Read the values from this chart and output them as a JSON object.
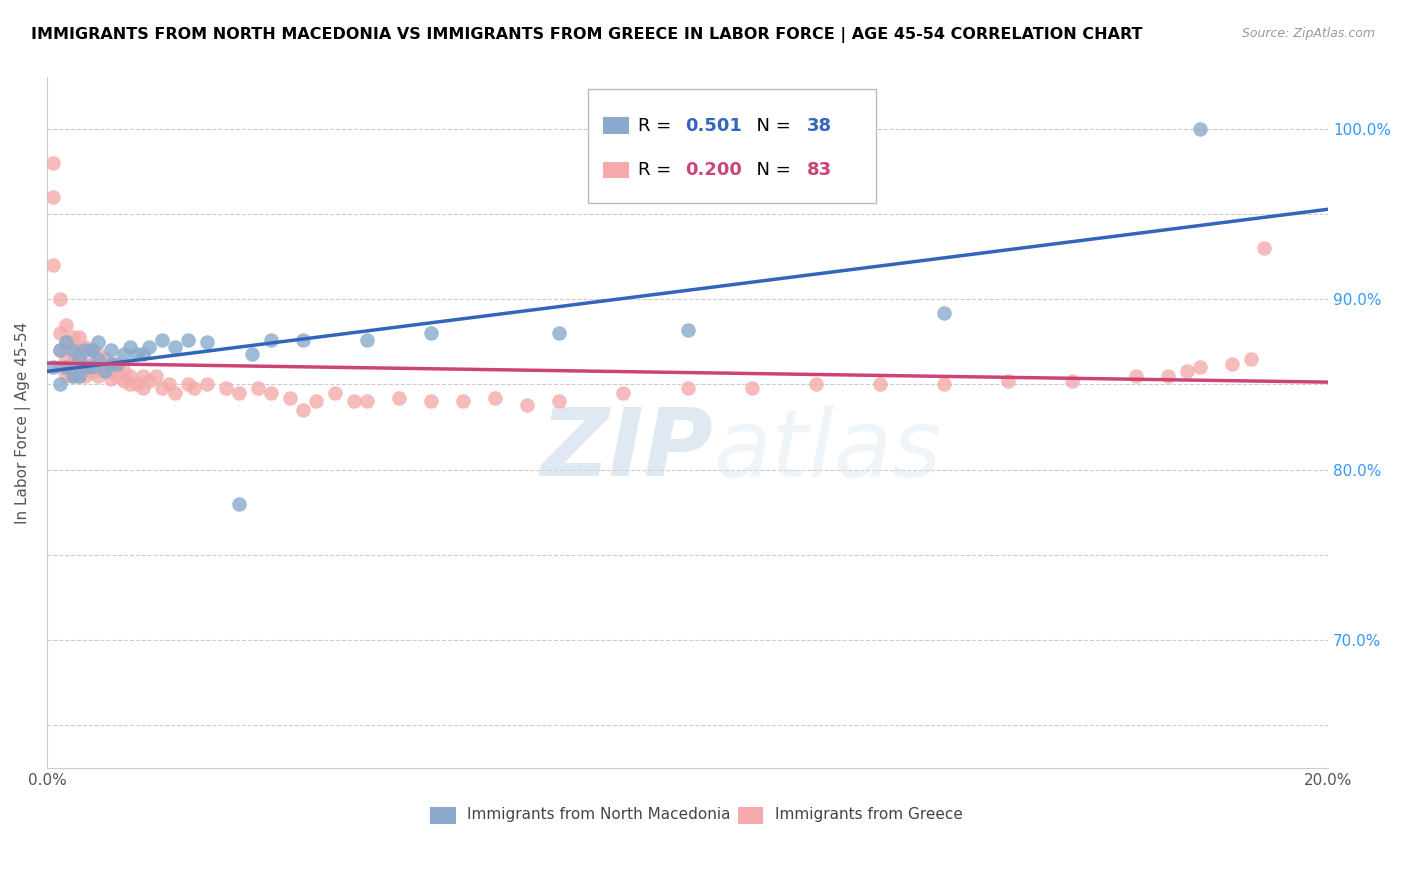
{
  "title": "IMMIGRANTS FROM NORTH MACEDONIA VS IMMIGRANTS FROM GREECE IN LABOR FORCE | AGE 45-54 CORRELATION CHART",
  "source": "Source: ZipAtlas.com",
  "ylabel": "In Labor Force | Age 45-54",
  "xlim": [
    0.0,
    0.2
  ],
  "ylim": [
    0.625,
    1.03
  ],
  "xticks": [
    0.0,
    0.05,
    0.1,
    0.15,
    0.2
  ],
  "xticklabels": [
    "0.0%",
    "",
    "",
    "",
    "20.0%"
  ],
  "yticks": [
    0.65,
    0.7,
    0.75,
    0.8,
    0.85,
    0.9,
    0.95,
    1.0
  ],
  "yticklabels": [
    "",
    "70.0%",
    "",
    "80.0%",
    "",
    "90.0%",
    "",
    "100.0%"
  ],
  "blue_label": "Immigrants from North Macedonia",
  "pink_label": "Immigrants from Greece",
  "R_blue": 0.501,
  "N_blue": 38,
  "R_pink": 0.2,
  "N_pink": 83,
  "blue_color": "#89AACC",
  "pink_color": "#F4AAAA",
  "blue_line_color": "#3366BB",
  "pink_line_color": "#CC4477",
  "watermark_zip": "ZIP",
  "watermark_atlas": "atlas",
  "blue_scatter_x": [
    0.001,
    0.002,
    0.002,
    0.003,
    0.003,
    0.004,
    0.004,
    0.005,
    0.005,
    0.006,
    0.006,
    0.007,
    0.007,
    0.008,
    0.008,
    0.009,
    0.01,
    0.01,
    0.011,
    0.012,
    0.013,
    0.014,
    0.015,
    0.016,
    0.018,
    0.02,
    0.022,
    0.025,
    0.03,
    0.032,
    0.035,
    0.04,
    0.05,
    0.06,
    0.08,
    0.1,
    0.14,
    0.18
  ],
  "blue_scatter_y": [
    0.86,
    0.87,
    0.85,
    0.875,
    0.86,
    0.855,
    0.87,
    0.865,
    0.855,
    0.87,
    0.86,
    0.87,
    0.86,
    0.875,
    0.865,
    0.858,
    0.862,
    0.87,
    0.862,
    0.868,
    0.872,
    0.868,
    0.868,
    0.872,
    0.876,
    0.872,
    0.876,
    0.875,
    0.78,
    0.868,
    0.876,
    0.876,
    0.876,
    0.88,
    0.88,
    0.882,
    0.892,
    1.0
  ],
  "pink_scatter_x": [
    0.001,
    0.001,
    0.001,
    0.002,
    0.002,
    0.002,
    0.002,
    0.003,
    0.003,
    0.003,
    0.003,
    0.003,
    0.004,
    0.004,
    0.004,
    0.004,
    0.005,
    0.005,
    0.005,
    0.005,
    0.005,
    0.006,
    0.006,
    0.006,
    0.007,
    0.007,
    0.007,
    0.008,
    0.008,
    0.008,
    0.009,
    0.009,
    0.01,
    0.01,
    0.01,
    0.011,
    0.011,
    0.012,
    0.012,
    0.013,
    0.013,
    0.014,
    0.015,
    0.015,
    0.016,
    0.017,
    0.018,
    0.019,
    0.02,
    0.022,
    0.023,
    0.025,
    0.028,
    0.03,
    0.033,
    0.035,
    0.038,
    0.04,
    0.042,
    0.045,
    0.048,
    0.05,
    0.055,
    0.06,
    0.065,
    0.07,
    0.075,
    0.08,
    0.09,
    0.1,
    0.11,
    0.12,
    0.13,
    0.14,
    0.15,
    0.16,
    0.17,
    0.175,
    0.178,
    0.18,
    0.185,
    0.188,
    0.19
  ],
  "pink_scatter_y": [
    0.96,
    0.98,
    0.92,
    0.9,
    0.88,
    0.87,
    0.86,
    0.885,
    0.875,
    0.865,
    0.86,
    0.855,
    0.878,
    0.868,
    0.862,
    0.855,
    0.878,
    0.87,
    0.865,
    0.86,
    0.855,
    0.872,
    0.862,
    0.855,
    0.87,
    0.862,
    0.857,
    0.868,
    0.86,
    0.855,
    0.865,
    0.858,
    0.862,
    0.858,
    0.853,
    0.86,
    0.855,
    0.858,
    0.852,
    0.855,
    0.85,
    0.85,
    0.855,
    0.848,
    0.852,
    0.855,
    0.848,
    0.85,
    0.845,
    0.85,
    0.848,
    0.85,
    0.848,
    0.845,
    0.848,
    0.845,
    0.842,
    0.835,
    0.84,
    0.845,
    0.84,
    0.84,
    0.842,
    0.84,
    0.84,
    0.842,
    0.838,
    0.84,
    0.845,
    0.848,
    0.848,
    0.85,
    0.85,
    0.85,
    0.852,
    0.852,
    0.855,
    0.855,
    0.858,
    0.86,
    0.862,
    0.865,
    0.93
  ]
}
